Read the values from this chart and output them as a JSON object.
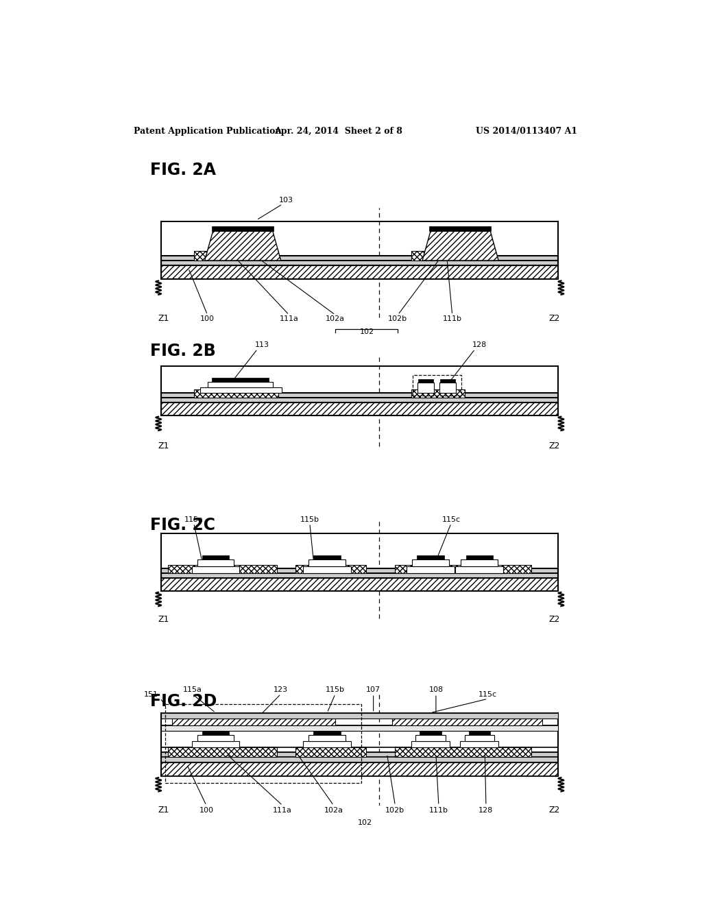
{
  "bg_color": "#ffffff",
  "header_left": "Patent Application Publication",
  "header_center": "Apr. 24, 2014  Sheet 2 of 8",
  "header_right": "US 2014/0113407 A1",
  "figures": [
    "FIG. 2A",
    "FIG. 2B",
    "FIG. 2C",
    "FIG. 2D"
  ],
  "dashed_line_x": 0.535
}
